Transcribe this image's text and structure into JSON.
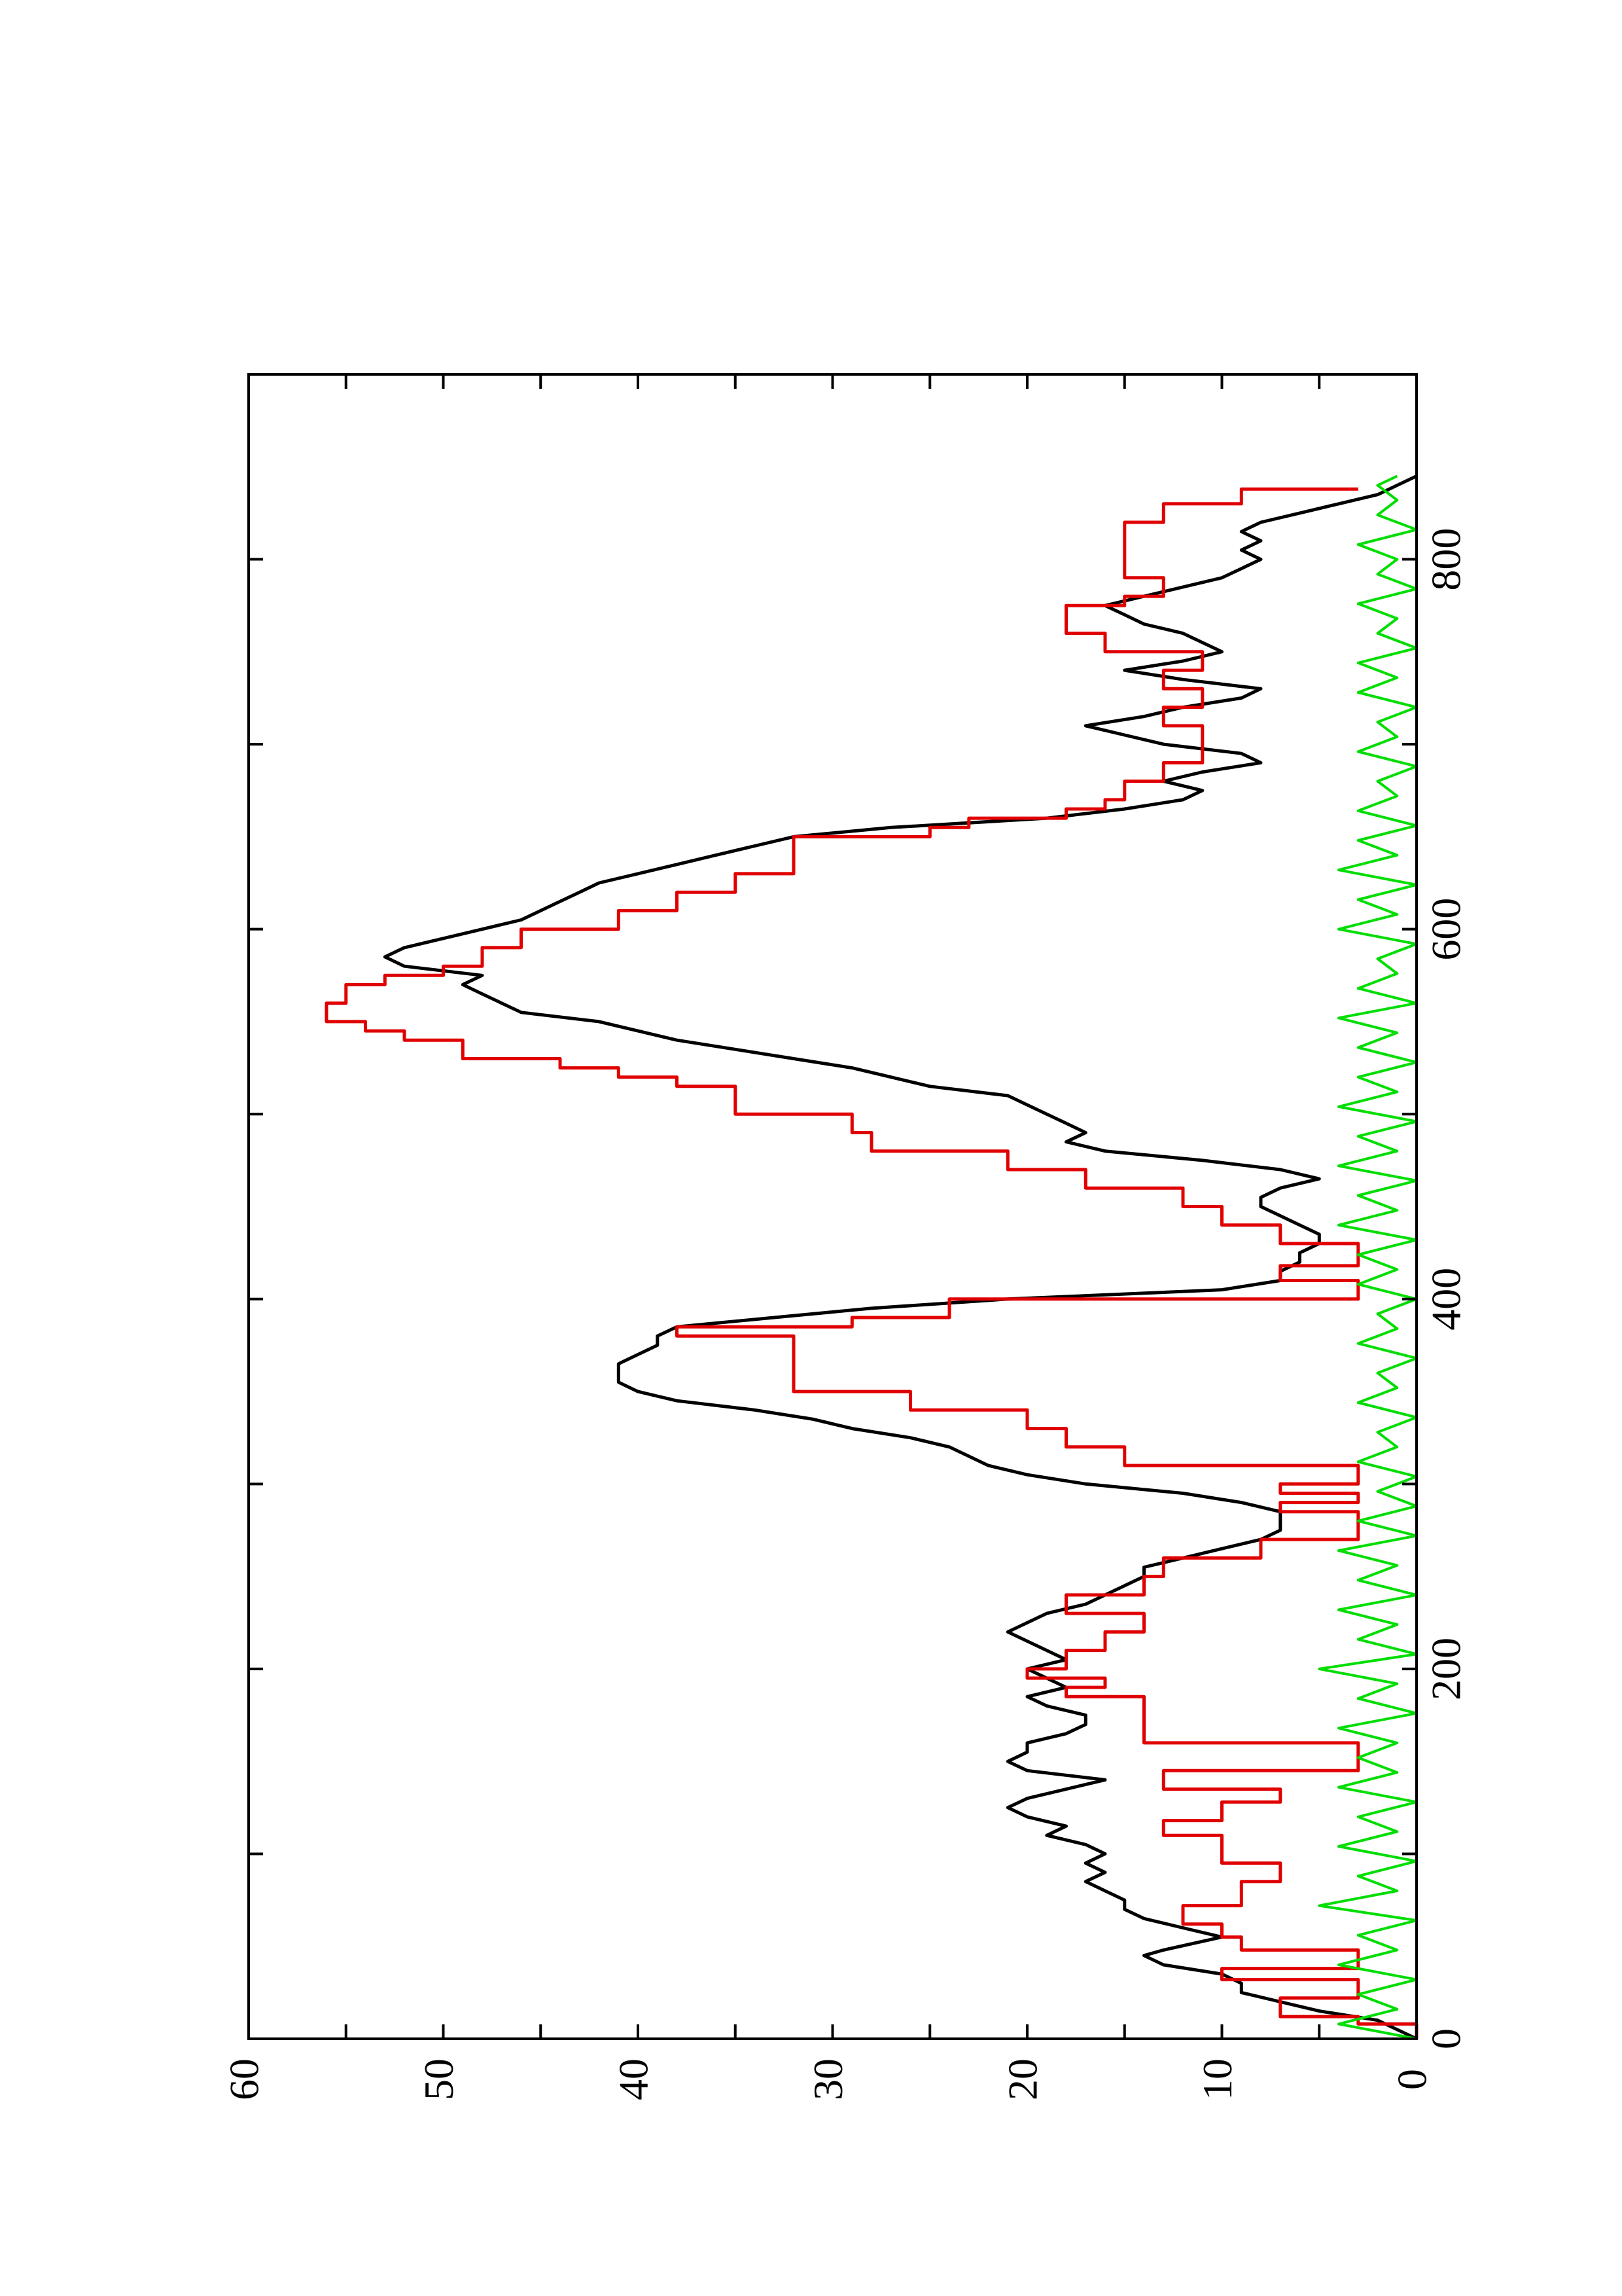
{
  "chart_data": {
    "type": "line",
    "orientation": "rotated-90-ccw",
    "title": "",
    "xlabel": "",
    "ylabel": "",
    "xlim": [
      0,
      900
    ],
    "ylim": [
      0,
      60
    ],
    "x_ticks": [
      "0",
      "200",
      "400",
      "600",
      "800"
    ],
    "y_ticks": [
      "0",
      "10",
      "20",
      "30",
      "40",
      "50",
      "60"
    ],
    "grid": false,
    "series": [
      {
        "color": "#000000",
        "style": "smooth",
        "x": [
          0,
          10,
          15,
          20,
          25,
          30,
          35,
          40,
          45,
          48,
          55,
          60,
          65,
          70,
          75,
          80,
          85,
          90,
          95,
          100,
          105,
          110,
          115,
          120,
          125,
          130,
          135,
          140,
          145,
          150,
          155,
          160,
          165,
          170,
          175,
          180,
          185,
          190,
          195,
          200,
          205,
          210,
          215,
          220,
          225,
          230,
          235,
          240,
          245,
          250,
          255,
          260,
          265,
          270,
          275,
          285,
          290,
          295,
          300,
          305,
          310,
          320,
          325,
          330,
          335,
          340,
          345,
          350,
          355,
          360,
          365,
          370,
          375,
          380,
          385,
          390,
          395,
          400,
          405,
          410,
          415,
          420,
          425,
          430,
          435,
          440,
          445,
          450,
          455,
          460,
          465,
          470,
          475,
          480,
          485,
          490,
          495,
          500,
          505,
          510,
          515,
          520,
          525,
          530,
          535,
          540,
          545,
          550,
          555,
          560,
          565,
          570,
          575,
          580,
          585,
          590,
          595,
          600,
          605,
          610,
          615,
          620,
          625,
          630,
          635,
          640,
          645,
          650,
          655,
          660,
          665,
          670,
          675,
          680,
          685,
          690,
          695,
          700,
          705,
          710,
          715,
          720,
          725,
          730,
          735,
          740,
          745,
          750,
          755,
          760,
          765,
          770,
          775,
          780,
          785,
          790,
          795,
          800,
          805,
          810,
          815,
          820,
          825,
          830,
          835,
          840,
          845
        ],
        "y": [
          0,
          2,
          5,
          7,
          9,
          9,
          10,
          13,
          14,
          13,
          10,
          12,
          14,
          15,
          15,
          16,
          17,
          16,
          17,
          16,
          17,
          19,
          18,
          20,
          21,
          20,
          18,
          16,
          20,
          21,
          20,
          20,
          18,
          17,
          17,
          19,
          20,
          18,
          19,
          20,
          18,
          19,
          20,
          21,
          20,
          19,
          17,
          16,
          15,
          14,
          14,
          12,
          10,
          8,
          7,
          7,
          9,
          12,
          17,
          20,
          22,
          24,
          26,
          29,
          31,
          34,
          38,
          40,
          41,
          41,
          41,
          40,
          39,
          39,
          38,
          33,
          28,
          21,
          10,
          7,
          7,
          6,
          6,
          5,
          5,
          6,
          7,
          8,
          8,
          7,
          5,
          7,
          11,
          16,
          18,
          17,
          18,
          19,
          20,
          21,
          25,
          27,
          29,
          32,
          35,
          38,
          40,
          42,
          46,
          47,
          48,
          49,
          48,
          52,
          53,
          52,
          50,
          48,
          46,
          45,
          44,
          43,
          42,
          40,
          38,
          36,
          34,
          32,
          27,
          19,
          15,
          12,
          11,
          13,
          11,
          8,
          9,
          13,
          15,
          17,
          14,
          12,
          9,
          8,
          12,
          15,
          12,
          10,
          11,
          12,
          14,
          15,
          16,
          14,
          12,
          10,
          9,
          8,
          9,
          8,
          9,
          8,
          6,
          4,
          2,
          1,
          0
        ]
      },
      {
        "color": "#e00000",
        "style": "steps",
        "x": [
          0,
          8,
          12,
          22,
          32,
          38,
          48,
          55,
          62,
          72,
          85,
          95,
          110,
          118,
          128,
          135,
          145,
          160,
          175,
          185,
          190,
          195,
          200,
          210,
          220,
          230,
          240,
          250,
          260,
          270,
          280,
          285,
          290,
          295,
          300,
          310,
          320,
          330,
          340,
          350,
          380,
          385,
          390,
          400,
          410,
          418,
          426,
          430,
          440,
          450,
          460,
          470,
          480,
          490,
          500,
          515,
          520,
          525,
          530,
          540,
          545,
          550,
          560,
          570,
          575,
          580,
          590,
          600,
          610,
          620,
          630,
          640,
          650,
          655,
          660,
          665,
          670,
          680,
          690,
          700,
          710,
          720,
          730,
          740,
          750,
          760,
          770,
          775,
          780,
          790,
          800,
          810,
          820,
          830,
          838
        ],
        "y": [
          0,
          3,
          7,
          3,
          10,
          3,
          9,
          10,
          12,
          9,
          7,
          10,
          13,
          10,
          7,
          13,
          3,
          14,
          14,
          18,
          16,
          20,
          18,
          16,
          14,
          18,
          14,
          13,
          8,
          3,
          3,
          7,
          3,
          7,
          3,
          15,
          18,
          20,
          26,
          32,
          38,
          29,
          24,
          3,
          7,
          3,
          3,
          7,
          10,
          12,
          17,
          21,
          28,
          29,
          35,
          38,
          41,
          44,
          49,
          52,
          54,
          56,
          55,
          53,
          50,
          48,
          46,
          41,
          38,
          35,
          32,
          32,
          25,
          23,
          18,
          16,
          15,
          13,
          11,
          11,
          13,
          11,
          13,
          11,
          16,
          18,
          18,
          15,
          13,
          15,
          15,
          15,
          13,
          9,
          3
        ]
      },
      {
        "color": "#00dd00",
        "style": "noise",
        "x": [
          0,
          8,
          16,
          24,
          32,
          40,
          48,
          56,
          64,
          72,
          80,
          88,
          96,
          104,
          112,
          120,
          128,
          136,
          144,
          152,
          160,
          168,
          176,
          184,
          192,
          200,
          208,
          216,
          224,
          232,
          240,
          248,
          256,
          264,
          272,
          280,
          288,
          296,
          304,
          312,
          320,
          328,
          336,
          344,
          352,
          360,
          368,
          376,
          384,
          392,
          400,
          408,
          416,
          424,
          432,
          440,
          448,
          456,
          464,
          472,
          480,
          488,
          496,
          504,
          512,
          520,
          528,
          536,
          544,
          552,
          560,
          568,
          576,
          584,
          592,
          600,
          608,
          616,
          624,
          632,
          640,
          648,
          656,
          664,
          672,
          680,
          688,
          696,
          704,
          712,
          720,
          728,
          736,
          744,
          752,
          760,
          768,
          776,
          784,
          792,
          800,
          808,
          816,
          824,
          832,
          840,
          845
        ],
        "y": [
          0,
          4,
          1,
          3,
          0,
          4,
          1,
          3,
          0,
          5,
          1,
          3,
          0,
          4,
          1,
          3,
          0,
          4,
          1,
          3,
          1,
          4,
          0,
          3,
          1,
          5,
          0,
          3,
          1,
          4,
          0,
          3,
          1,
          4,
          0,
          3,
          0,
          2,
          0,
          3,
          1,
          2,
          0,
          3,
          1,
          2,
          0,
          3,
          1,
          2,
          0,
          3,
          1,
          3,
          0,
          4,
          1,
          3,
          0,
          4,
          1,
          3,
          0,
          4,
          1,
          3,
          0,
          3,
          1,
          4,
          0,
          3,
          1,
          2,
          0,
          4,
          1,
          3,
          0,
          4,
          1,
          3,
          0,
          3,
          1,
          2,
          0,
          3,
          1,
          2,
          0,
          3,
          1,
          3,
          0,
          2,
          1,
          3,
          0,
          2,
          1,
          3,
          0,
          2,
          1,
          2,
          1
        ]
      }
    ]
  }
}
